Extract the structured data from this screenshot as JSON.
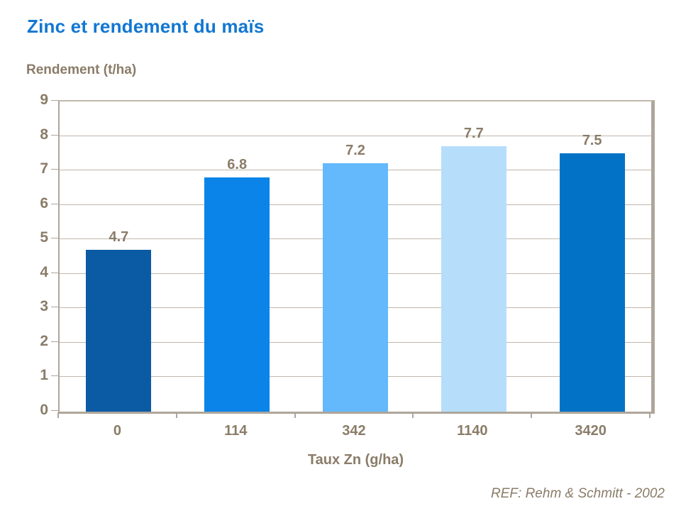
{
  "page": {
    "title": "Zinc et rendement du maïs",
    "reference": "REF: Rehm & Schmitt - 2002"
  },
  "colors": {
    "title": "#1177D2",
    "text": "#8A7C68",
    "axis": "#AFA69B",
    "gridline": "#C0B7AC",
    "bars": [
      "#0B5AA4",
      "#0A84E8",
      "#63B9FB",
      "#B6DEFB",
      "#0272C6"
    ]
  },
  "chart_data": {
    "type": "bar",
    "title": "Zinc et rendement du maïs",
    "categories": [
      "0",
      "114",
      "342",
      "1140",
      "3420"
    ],
    "values": [
      4.7,
      6.8,
      7.2,
      7.7,
      7.5
    ],
    "bar_labels": [
      "4.7",
      "6.8",
      "7.2",
      "7.7",
      "7.5"
    ],
    "xlabel": "Taux Zn (g/ha)",
    "ylabel": "Rendement (t/ha)",
    "ylim": [
      0,
      9
    ],
    "yticks": [
      "0",
      "1",
      "2",
      "3",
      "4",
      "5",
      "6",
      "7",
      "8",
      "9"
    ],
    "grid": true,
    "legend": false,
    "bar_colors": [
      "#0B5AA4",
      "#0A84E8",
      "#63B9FB",
      "#B6DEFB",
      "#0272C6"
    ]
  }
}
